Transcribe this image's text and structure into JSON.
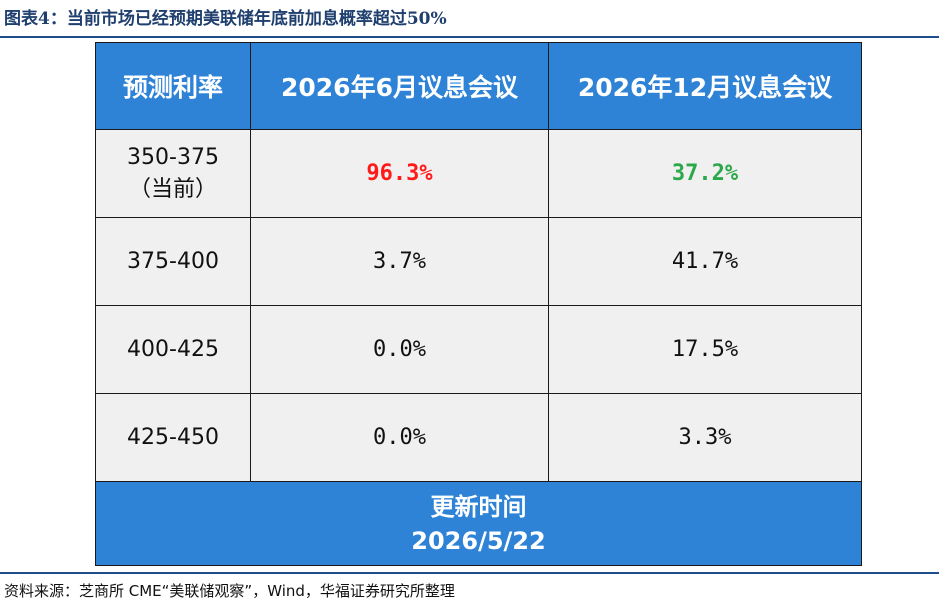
{
  "figure": {
    "title": "图表4：当前市场已经预期美联储年底前加息概率超过50%"
  },
  "table": {
    "headers": [
      "预测利率",
      "2026年6月议息会议",
      "2026年12月议息会议"
    ],
    "rows": [
      {
        "rate": "350-375",
        "rate_note": "（当前）",
        "june": "96.3%",
        "dec": "37.2%"
      },
      {
        "rate": "375-400",
        "june": "3.7%",
        "dec": "41.7%"
      },
      {
        "rate": "400-425",
        "june": "0.0%",
        "dec": "17.5%"
      },
      {
        "rate": "425-450",
        "june": "0.0%",
        "dec": "3.3%"
      }
    ],
    "footer": {
      "label": "更新时间",
      "date": "2026/5/22"
    }
  },
  "source": "资料来源：芝商所 CME“美联储观察”，Wind，华福证券研究所整理",
  "colors": {
    "header_bg": "#2e83d6",
    "cell_bg": "#f0f0f0",
    "highlight_red": "#ff1a1a",
    "highlight_green": "#2aa84a",
    "rule": "#1f4e8c"
  }
}
